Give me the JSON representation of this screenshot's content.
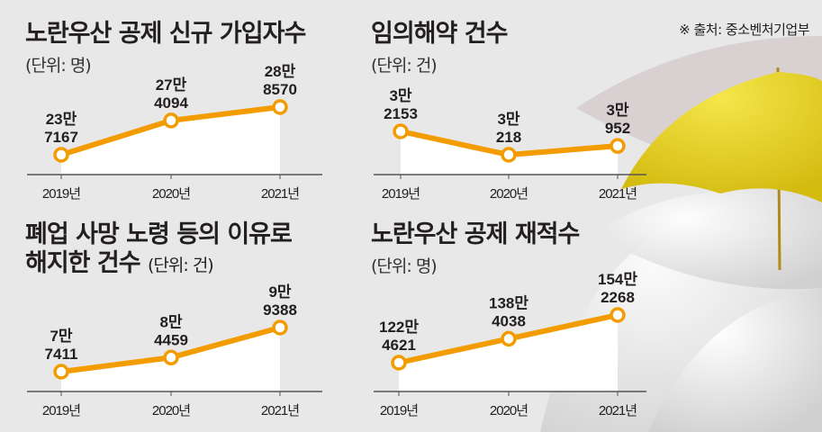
{
  "source": "※ 출처: 중소벤처기업부",
  "colors": {
    "line": "#f39c00",
    "background": "#e8e8e8",
    "area": "#ffffff",
    "umbrella": "#e8d21a"
  },
  "chart_data": [
    {
      "type": "line",
      "title": "노란우산 공제 신규 가입자수",
      "unit": "(단위: 명)",
      "categories": [
        "2019년",
        "2020년",
        "2021년"
      ],
      "values": [
        237167,
        274094,
        288570
      ],
      "labels": [
        [
          "23만",
          "7167"
        ],
        [
          "27만",
          "4094"
        ],
        [
          "28만",
          "8570"
        ]
      ]
    },
    {
      "type": "line",
      "title": "임의해약 건수",
      "unit": "(단위: 건)",
      "categories": [
        "2019년",
        "2020년",
        "2021년"
      ],
      "values": [
        32153,
        30218,
        30952
      ],
      "labels": [
        [
          "3만",
          "2153"
        ],
        [
          "3만",
          "218"
        ],
        [
          "3만",
          "952"
        ]
      ]
    },
    {
      "type": "line",
      "title": "폐업 사망 노령 등의 이유로",
      "title2": "해지한 건수",
      "unit": "(단위: 건)",
      "categories": [
        "2019년",
        "2020년",
        "2021년"
      ],
      "values": [
        77411,
        84459,
        99388
      ],
      "labels": [
        [
          "7만",
          "7411"
        ],
        [
          "8만",
          "4459"
        ],
        [
          "9만",
          "9388"
        ]
      ]
    },
    {
      "type": "line",
      "title": "노란우산 공제 재적수",
      "unit": "(단위: 명)",
      "categories": [
        "2019년",
        "2020년",
        "2021년"
      ],
      "values": [
        1224621,
        1384038,
        1542268
      ],
      "labels": [
        [
          "122만",
          "4621"
        ],
        [
          "138만",
          "4038"
        ],
        [
          "154만",
          "2268"
        ]
      ]
    }
  ]
}
